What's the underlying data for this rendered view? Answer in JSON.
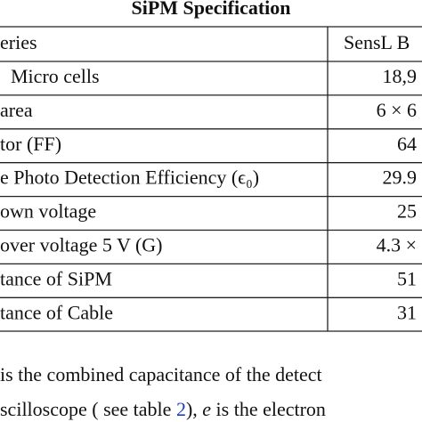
{
  "header": {
    "title": "SiPM Specification"
  },
  "table": {
    "columns": [
      "eries",
      "SensL B"
    ],
    "rows": [
      [
        "Micro cells",
        "18,9"
      ],
      [
        "area",
        "6 × 6"
      ],
      [
        "tor (FF)",
        "64"
      ],
      [
        "e Photo Detection Efficiency (ϵ₀)",
        "29.9"
      ],
      [
        "own voltage",
        "25"
      ],
      [
        "over voltage 5 V (G)",
        "4.3 ×"
      ],
      [
        "tance of SiPM",
        "51"
      ],
      [
        "tance of Cable",
        "31"
      ]
    ]
  },
  "paragraph": {
    "line1": "is the combined capacitance of the detect",
    "line2": [
      "scilloscope ( see table ",
      "2",
      "), ",
      "e",
      " is the electron"
    ]
  }
}
